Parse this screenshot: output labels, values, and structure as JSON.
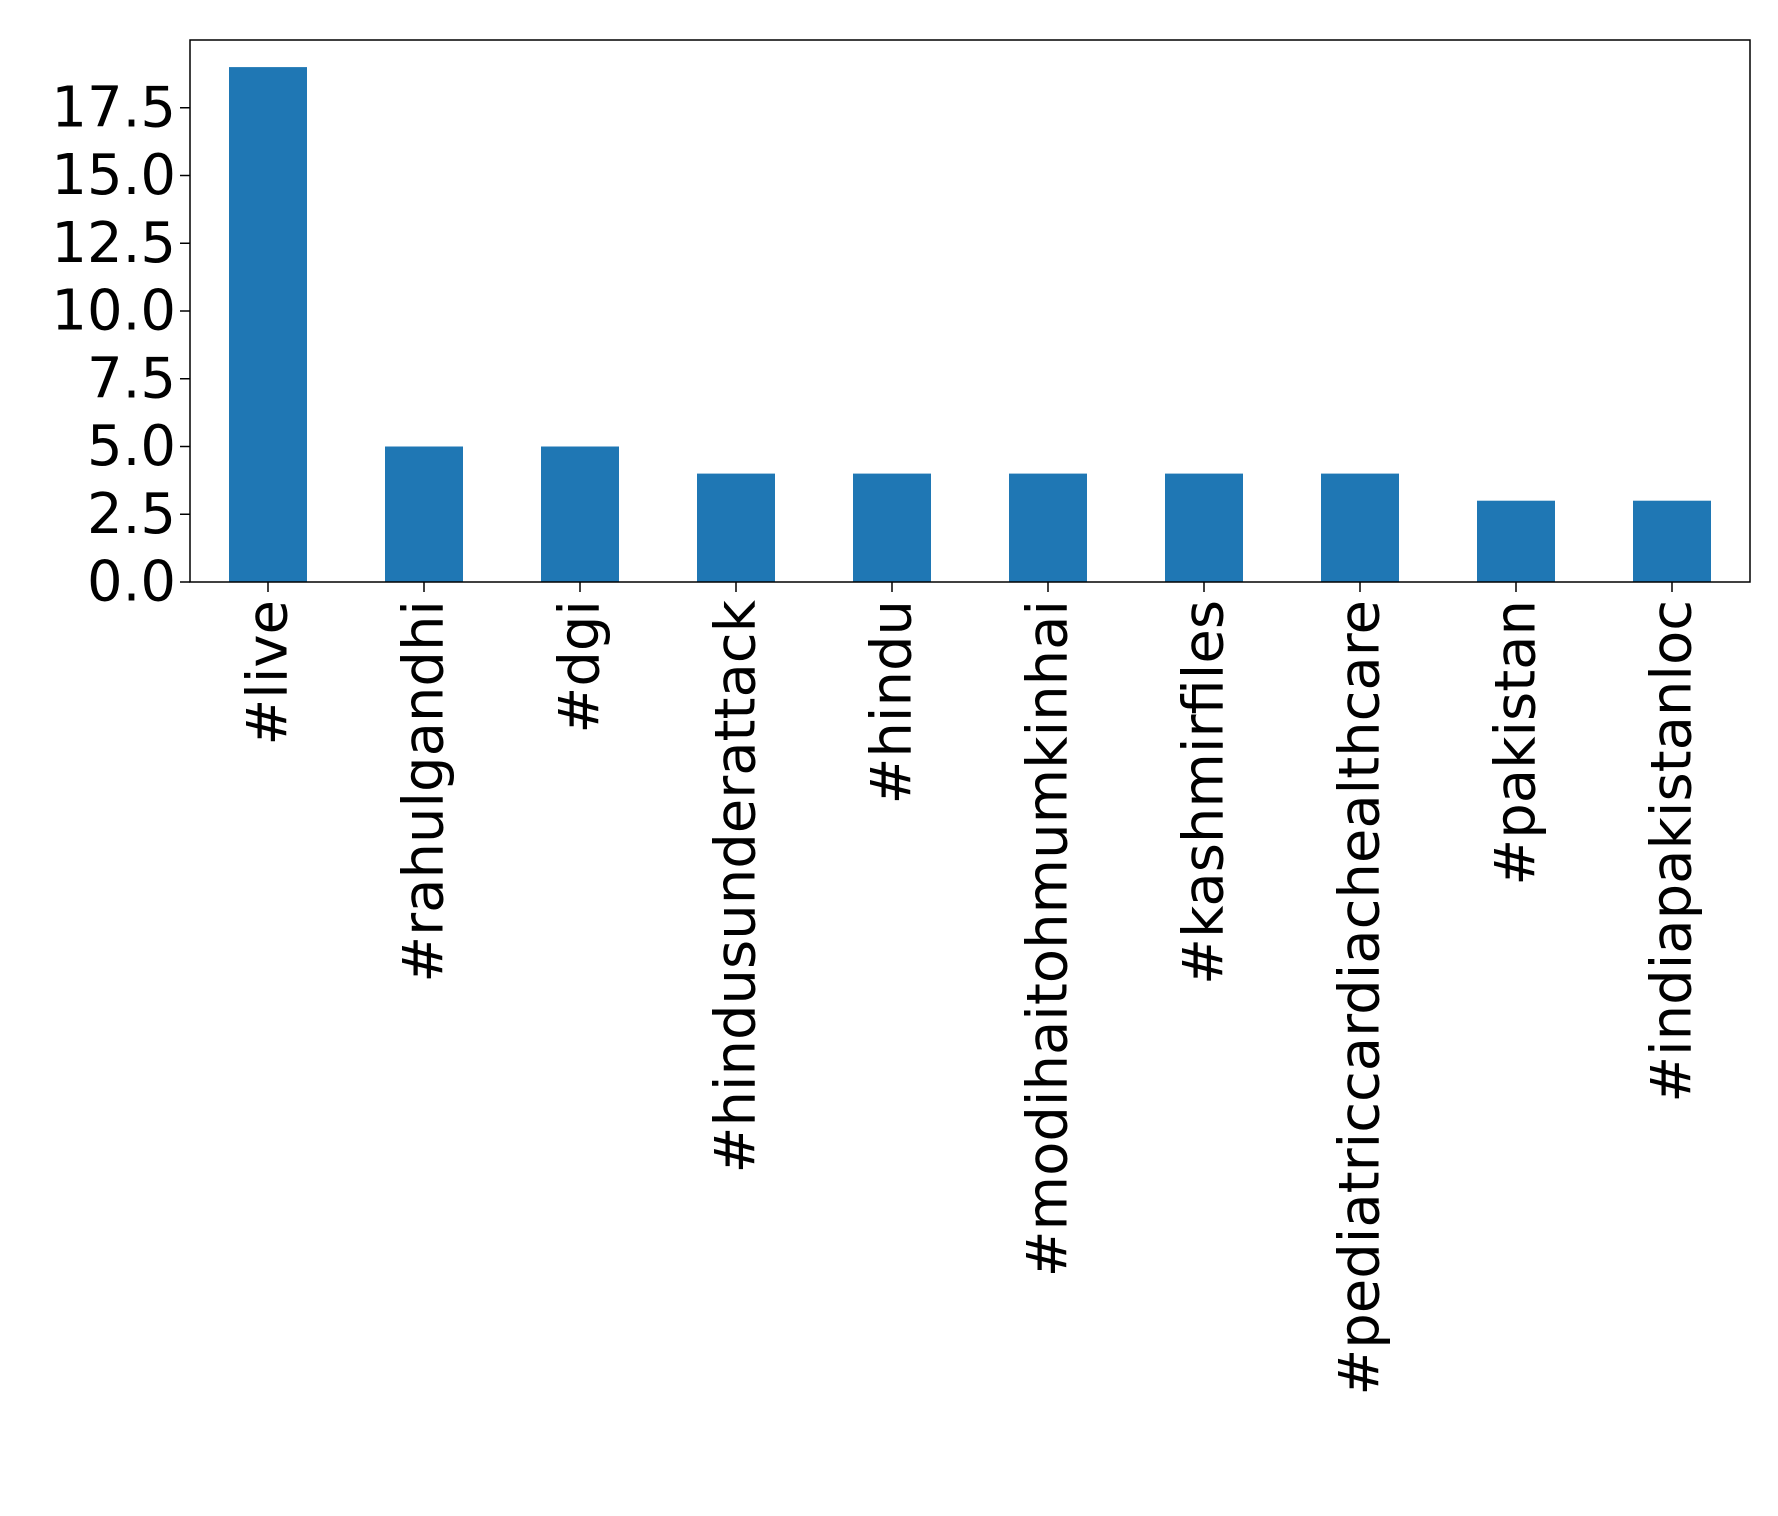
{
  "chart_data": {
    "type": "bar",
    "title": "",
    "xlabel": "",
    "ylabel": "",
    "categories": [
      "#live",
      "#rahulgandhi",
      "#dgi",
      "#hindusunderattack",
      "#hindu",
      "#modihaitohmumkinhai",
      "#kashmirfiles",
      "#pediatriccardiachealthcare",
      "#pakistan",
      "#indiapakistanloc"
    ],
    "values": [
      19,
      5,
      5,
      4,
      4,
      4,
      4,
      4,
      3,
      3
    ],
    "ylim": [
      0,
      20
    ],
    "yticks": [
      "0.0",
      "2.5",
      "5.0",
      "7.5",
      "10.0",
      "12.5",
      "15.0",
      "17.5"
    ],
    "grid": false,
    "legend": "none",
    "bar_color": "#1f77b4"
  }
}
